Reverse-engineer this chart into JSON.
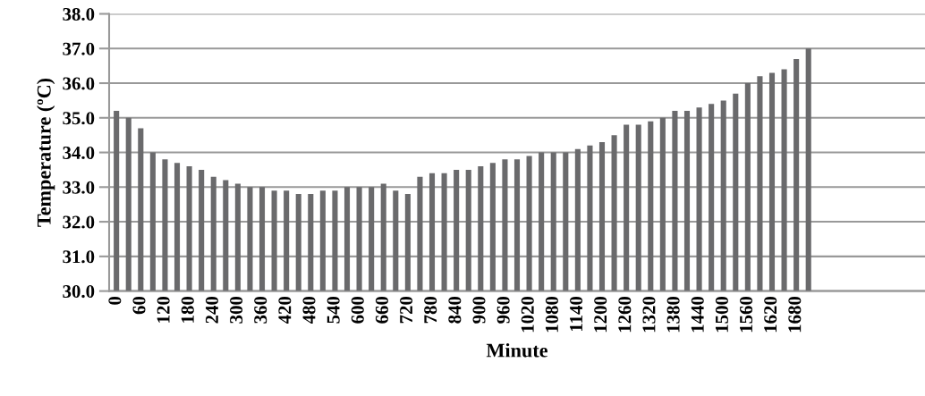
{
  "chart_data": {
    "type": "bar",
    "xlabel": "Minute",
    "ylabel": "Temperature (ºC)",
    "categories": [
      "0",
      null,
      "60",
      null,
      "120",
      null,
      "180",
      null,
      "240",
      null,
      "300",
      null,
      "360",
      null,
      "420",
      null,
      "480",
      null,
      "540",
      null,
      "600",
      null,
      "660",
      null,
      "720",
      null,
      "780",
      null,
      "840",
      null,
      "900",
      null,
      "960",
      null,
      "1020",
      null,
      "1080",
      null,
      "1140",
      null,
      "1200",
      null,
      "1260",
      null,
      "1320",
      null,
      "1380",
      null,
      "1440",
      null,
      "1500",
      null,
      "1560",
      null,
      "1620",
      null,
      "1680",
      null,
      null,
      null,
      null,
      null,
      null,
      null,
      null,
      null,
      null
    ],
    "values": [
      35.2,
      35.0,
      34.7,
      34.0,
      33.8,
      33.7,
      33.6,
      33.5,
      33.3,
      33.2,
      33.1,
      33.0,
      33.0,
      32.9,
      32.9,
      32.8,
      32.8,
      32.9,
      32.9,
      33.0,
      33.0,
      33.0,
      33.1,
      32.9,
      32.8,
      33.3,
      33.4,
      33.4,
      33.5,
      33.5,
      33.6,
      33.7,
      33.8,
      33.8,
      33.9,
      34.0,
      34.0,
      34.0,
      34.1,
      34.2,
      34.3,
      34.5,
      34.8,
      34.8,
      34.9,
      35.0,
      35.2,
      35.2,
      35.3,
      35.4,
      35.5,
      35.7,
      36.0,
      36.2,
      36.3,
      36.4,
      36.7,
      37.0,
      null,
      null,
      null,
      null,
      null,
      null,
      null,
      null,
      null
    ],
    "color": "#6a6a6c",
    "ylim": [
      30.0,
      38.0
    ],
    "yticks": [
      {
        "value": 30,
        "label": "30.0"
      },
      {
        "value": 31,
        "label": "31.0"
      },
      {
        "value": 32,
        "label": "32.0"
      },
      {
        "value": 33,
        "label": "33.0"
      },
      {
        "value": 34,
        "label": "34.0"
      },
      {
        "value": 35,
        "label": "35.0"
      },
      {
        "value": 36,
        "label": "36.0"
      },
      {
        "value": 37,
        "label": "37.0"
      },
      {
        "value": 38,
        "label": "38.0"
      }
    ],
    "grid": "y"
  }
}
